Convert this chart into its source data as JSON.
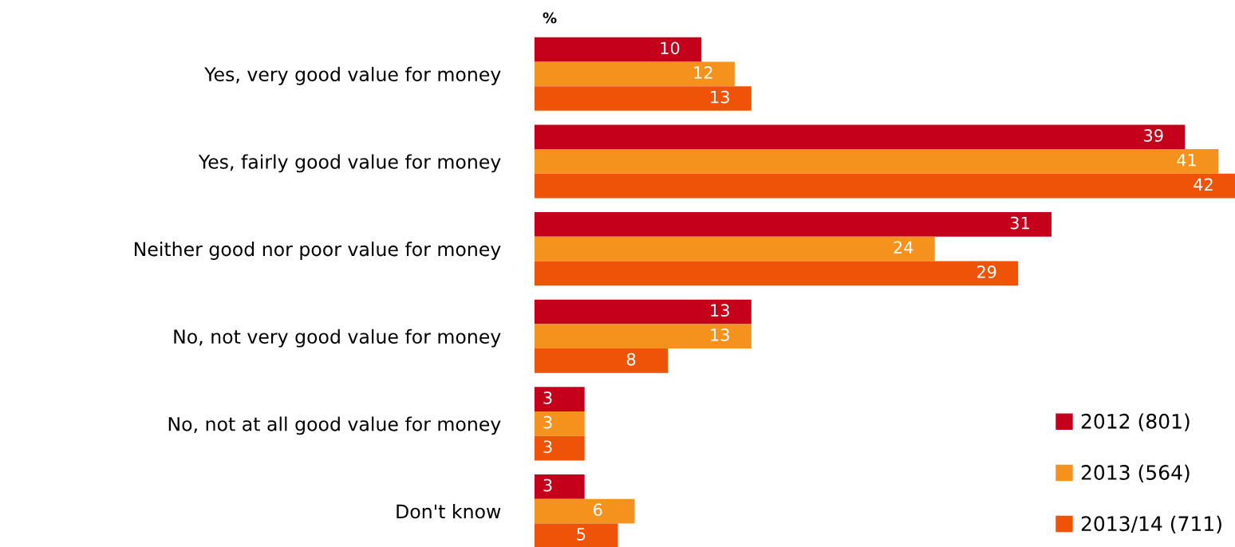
{
  "chart_data": {
    "type": "bar",
    "orientation": "horizontal",
    "categories": [
      "Yes, very good value for money",
      "Yes, fairly good value for money",
      "Neither good nor poor value for money",
      "No, not very good value for money",
      "No, not at all good value for money",
      "Don't know"
    ],
    "series": [
      {
        "name": "2012 (801)",
        "color": "#c4001a",
        "values": [
          10,
          39,
          31,
          13,
          3,
          3
        ]
      },
      {
        "name": "2013 (564)",
        "color": "#f5921e",
        "values": [
          12,
          41,
          24,
          13,
          3,
          6
        ]
      },
      {
        "name": "2013/14 (711)",
        "color": "#ef5307",
        "values": [
          13,
          42,
          29,
          8,
          3,
          5
        ]
      }
    ],
    "annotations": [
      "%"
    ],
    "data_labels": true,
    "legend": "bottom right",
    "grid": false
  }
}
